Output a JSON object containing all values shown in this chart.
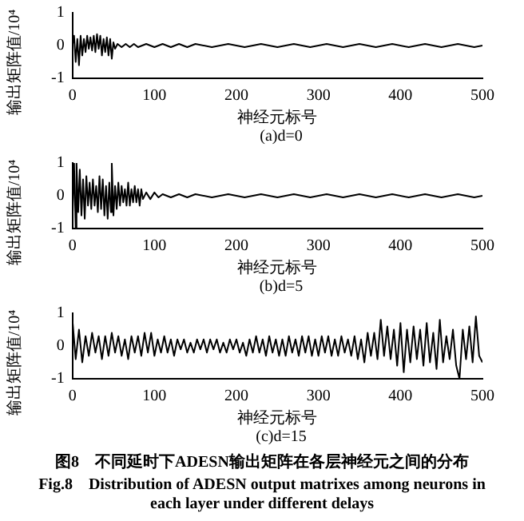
{
  "chart_data": [
    {
      "type": "line",
      "title": "(a)d=0",
      "xlabel": "神经元标号",
      "ylabel": "输出矩阵值/10⁴",
      "xlim": [
        0,
        500
      ],
      "xticks": [
        0,
        100,
        200,
        300,
        400,
        500
      ],
      "ylim": [
        -1,
        1
      ],
      "yticks": [
        -1,
        0,
        1
      ],
      "grid": false,
      "legend": false,
      "series": [
        {
          "color": "#000000",
          "x": [
            0,
            2,
            4,
            6,
            8,
            10,
            12,
            14,
            16,
            18,
            20,
            22,
            24,
            26,
            28,
            30,
            32,
            34,
            36,
            38,
            40,
            42,
            44,
            46,
            48,
            50,
            52,
            55,
            60,
            65,
            70,
            75,
            80,
            90,
            100,
            110,
            120,
            130,
            140,
            150,
            170,
            190,
            210,
            230,
            250,
            270,
            290,
            310,
            330,
            350,
            370,
            390,
            410,
            430,
            450,
            470,
            490,
            500
          ],
          "values": [
            0,
            0.3,
            -0.5,
            0.2,
            -0.6,
            0.3,
            -0.3,
            0.2,
            -0.2,
            0.3,
            -0.1,
            0.25,
            -0.15,
            0.3,
            -0.2,
            0.35,
            -0.1,
            0.3,
            -0.3,
            0.2,
            -0.2,
            0.25,
            -0.3,
            0.2,
            -0.4,
            0.1,
            -0.1,
            0.05,
            -0.05,
            0.05,
            -0.05,
            0.05,
            -0.05,
            0.05,
            -0.05,
            0.05,
            -0.05,
            0.05,
            -0.05,
            0.05,
            -0.05,
            0.05,
            -0.05,
            0.05,
            -0.05,
            0.05,
            -0.05,
            0.05,
            -0.05,
            0.05,
            -0.05,
            0.05,
            -0.05,
            0.05,
            -0.05,
            0.05,
            -0.05,
            0
          ]
        }
      ]
    },
    {
      "type": "line",
      "title": "(b)d=5",
      "xlabel": "神经元标号",
      "ylabel": "输出矩阵值/10⁴",
      "xlim": [
        0,
        500
      ],
      "xticks": [
        0,
        100,
        200,
        300,
        400,
        500
      ],
      "ylim": [
        -1,
        1
      ],
      "yticks": [
        -1,
        0,
        1
      ],
      "grid": false,
      "legend": false,
      "series": [
        {
          "color": "#000000",
          "x": [
            0,
            2,
            4,
            5,
            7,
            9,
            11,
            13,
            15,
            17,
            19,
            21,
            23,
            25,
            27,
            29,
            31,
            33,
            35,
            37,
            39,
            41,
            43,
            45,
            47,
            48,
            50,
            52,
            54,
            56,
            58,
            60,
            62,
            64,
            66,
            68,
            70,
            72,
            74,
            76,
            78,
            80,
            82,
            84,
            86,
            90,
            95,
            100,
            105,
            110,
            120,
            130,
            140,
            150,
            170,
            190,
            210,
            230,
            250,
            270,
            290,
            310,
            330,
            350,
            370,
            390,
            410,
            430,
            450,
            470,
            490,
            500
          ],
          "values": [
            -0.8,
            1,
            -1,
            1,
            -0.5,
            0.8,
            -0.6,
            0.5,
            -0.7,
            0.6,
            -0.3,
            0.4,
            -0.4,
            0.5,
            -0.3,
            0.3,
            -0.5,
            0.6,
            -0.4,
            0.5,
            -0.6,
            0.3,
            -0.7,
            0.4,
            -0.5,
            1,
            -0.6,
            0.3,
            -0.4,
            0.4,
            -0.3,
            0.3,
            -0.2,
            0.2,
            -0.3,
            0.4,
            -0.3,
            0.2,
            -0.2,
            0.3,
            -0.2,
            0.2,
            -0.3,
            0.2,
            -0.1,
            0.1,
            -0.1,
            0.1,
            -0.05,
            0.05,
            -0.05,
            0.05,
            -0.05,
            0.05,
            -0.05,
            0.05,
            -0.05,
            0.05,
            -0.05,
            0.05,
            -0.05,
            0.05,
            -0.05,
            0.05,
            -0.05,
            0.05,
            -0.05,
            0.05,
            -0.05,
            0.05,
            -0.05,
            0
          ]
        }
      ]
    },
    {
      "type": "line",
      "title": "(c)d=15",
      "xlabel": "神经元标号",
      "ylabel": "输出矩阵值/10⁴",
      "xlim": [
        0,
        500
      ],
      "xticks": [
        0,
        100,
        200,
        300,
        400,
        500
      ],
      "ylim": [
        -1,
        1
      ],
      "yticks": [
        -1,
        0,
        1
      ],
      "grid": false,
      "legend": false,
      "annotations": [
        "图8　不同延时下ADESN输出矩阵在各层神经元之间的分布",
        "Fig.8　Distribution of ADESN output matrixes among neurons in each layer under different delays"
      ],
      "series": [
        {
          "color": "#000000",
          "x": [
            0,
            4,
            8,
            12,
            16,
            20,
            24,
            28,
            32,
            36,
            40,
            44,
            48,
            52,
            56,
            60,
            64,
            68,
            72,
            76,
            80,
            84,
            88,
            92,
            96,
            100,
            104,
            108,
            112,
            116,
            120,
            124,
            128,
            132,
            136,
            140,
            144,
            148,
            152,
            156,
            160,
            164,
            168,
            172,
            176,
            180,
            184,
            188,
            192,
            196,
            200,
            204,
            208,
            212,
            216,
            220,
            224,
            228,
            232,
            236,
            240,
            244,
            248,
            252,
            256,
            260,
            264,
            268,
            272,
            276,
            280,
            284,
            288,
            292,
            296,
            300,
            304,
            308,
            312,
            316,
            320,
            324,
            328,
            332,
            336,
            340,
            344,
            348,
            352,
            356,
            360,
            364,
            368,
            372,
            376,
            380,
            384,
            388,
            392,
            396,
            400,
            404,
            408,
            412,
            416,
            420,
            424,
            428,
            432,
            436,
            440,
            444,
            448,
            452,
            456,
            460,
            464,
            468,
            472,
            476,
            480,
            484,
            488,
            492,
            496,
            500
          ],
          "values": [
            0.8,
            -0.4,
            0.5,
            -0.5,
            0.3,
            -0.3,
            0.4,
            -0.2,
            0.3,
            -0.4,
            0.3,
            -0.3,
            0.4,
            -0.2,
            0.3,
            -0.3,
            0.2,
            -0.4,
            0.3,
            -0.2,
            0.3,
            -0.3,
            0.4,
            -0.2,
            0.4,
            -0.3,
            0.2,
            -0.2,
            0.3,
            -0.2,
            0.2,
            -0.3,
            0.2,
            -0.1,
            0.2,
            -0.2,
            0.1,
            -0.2,
            0.2,
            -0.1,
            0.2,
            -0.2,
            0.2,
            -0.1,
            0.2,
            -0.2,
            0.1,
            -0.2,
            0.2,
            -0.1,
            0.2,
            -0.2,
            0.1,
            -0.3,
            0.2,
            -0.2,
            0.3,
            -0.2,
            0.2,
            -0.3,
            0.3,
            -0.2,
            0.2,
            -0.3,
            0.2,
            -0.3,
            0.3,
            -0.2,
            0.2,
            -0.3,
            0.3,
            -0.2,
            0.3,
            -0.3,
            0.2,
            -0.3,
            0.3,
            -0.2,
            0.3,
            -0.3,
            0.2,
            -0.3,
            0.3,
            -0.2,
            0.2,
            -0.3,
            0.3,
            -0.4,
            0.2,
            -0.5,
            0.4,
            -0.3,
            0.4,
            -0.4,
            0.8,
            -0.3,
            0.6,
            -0.4,
            0.5,
            -0.6,
            0.7,
            -0.8,
            0.5,
            -0.5,
            0.6,
            -0.4,
            0.5,
            -0.6,
            0.7,
            -0.5,
            0.4,
            -0.7,
            0.8,
            -0.5,
            0.3,
            -0.4,
            0.5,
            -0.6,
            -1,
            0.5,
            -0.4,
            0.6,
            -0.5,
            0.9,
            -0.3,
            -0.5
          ]
        }
      ]
    }
  ]
}
